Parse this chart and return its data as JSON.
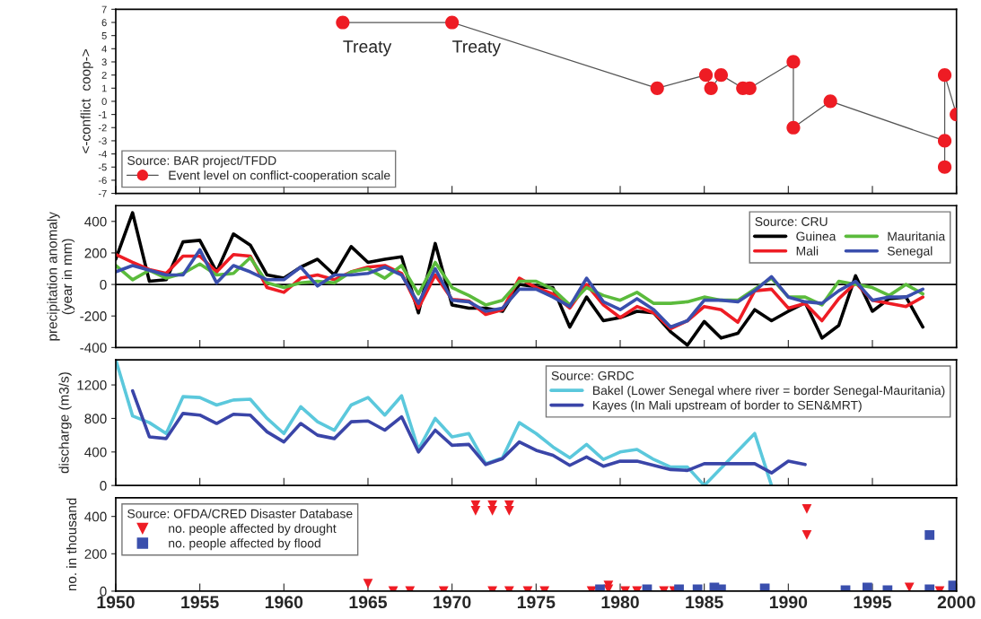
{
  "chart_data": [
    {
      "type": "line",
      "ylabel": "<-conflict  coop->",
      "xlim": [
        1950,
        2000
      ],
      "xticks": [
        1950,
        1955,
        1960,
        1965,
        1970,
        1975,
        1980,
        1985,
        1990,
        1995,
        2000
      ],
      "ylim": [
        -7,
        7
      ],
      "yticks": [
        -7,
        -6,
        -5,
        -4,
        -3,
        -2,
        -1,
        0,
        1,
        2,
        3,
        4,
        5,
        6,
        7
      ],
      "tick_labels": "y",
      "grid": false,
      "legend": "bottom left",
      "legend_title": "Source: BAR project/TFDD",
      "marker": "circle",
      "series": [
        {
          "name": "Event level on conflict-cooperation scale",
          "color": "#ee1c24",
          "x": [
            1963.5,
            1970,
            1982.2,
            1985.1,
            1985.4,
            1986,
            1987.3,
            1987.7,
            1990.3,
            1990.3,
            1992.5,
            1999.3,
            1999.3,
            1999.3,
            2000
          ],
          "values": [
            6,
            6,
            1,
            2,
            1,
            2,
            1,
            1,
            3,
            -2,
            0,
            -3,
            -5,
            2,
            -1
          ]
        }
      ],
      "annotations": [
        {
          "text": "Treaty",
          "x": 1963.5,
          "y": 6
        },
        {
          "text": "Treaty",
          "x": 1970,
          "y": 6
        }
      ]
    },
    {
      "type": "line",
      "ylabel": "precipitation anomaly\n(year in mm)",
      "xlim": [
        1950,
        2000
      ],
      "xticks": [
        1950,
        1955,
        1960,
        1965,
        1970,
        1975,
        1980,
        1985,
        1990,
        1995,
        2000
      ],
      "ylim": [
        -400,
        500
      ],
      "yticks": [
        -400,
        -200,
        0,
        200,
        400
      ],
      "tick_labels": "y",
      "grid": false,
      "legend": "top right",
      "legend_title": "Source: CRU",
      "x": [
        1950,
        1951,
        1952,
        1953,
        1954,
        1955,
        1956,
        1957,
        1958,
        1959,
        1960,
        1961,
        1962,
        1963,
        1964,
        1965,
        1966,
        1967,
        1968,
        1969,
        1970,
        1971,
        1972,
        1973,
        1974,
        1975,
        1976,
        1977,
        1978,
        1979,
        1980,
        1981,
        1982,
        1983,
        1984,
        1985,
        1986,
        1987,
        1988,
        1989,
        1990,
        1991,
        1992,
        1993,
        1994,
        1995,
        1996,
        1997,
        1998
      ],
      "ref_lines": [
        {
          "axis": "y",
          "value": 0,
          "color": "#000000"
        }
      ],
      "series": [
        {
          "name": "Guinea",
          "color": "#000000",
          "values": [
            160,
            455,
            20,
            30,
            270,
            280,
            80,
            320,
            250,
            60,
            40,
            110,
            160,
            60,
            240,
            140,
            160,
            175,
            -180,
            260,
            -130,
            -150,
            -150,
            -170,
            0,
            -15,
            -20,
            -270,
            -80,
            -230,
            -210,
            -170,
            -180,
            -300,
            -385,
            -235,
            -340,
            -310,
            -160,
            -230,
            -170,
            -115,
            -340,
            -260,
            55,
            -170,
            -90,
            -80,
            -270
          ]
        },
        {
          "name": "Mali",
          "color": "#ee1c24",
          "values": [
            190,
            140,
            95,
            70,
            180,
            180,
            80,
            190,
            180,
            -20,
            -50,
            40,
            60,
            30,
            80,
            110,
            120,
            70,
            -150,
            60,
            -95,
            -105,
            -190,
            -160,
            40,
            -20,
            -60,
            -150,
            0,
            -130,
            -210,
            -140,
            -180,
            -280,
            -230,
            -140,
            -160,
            -240,
            -40,
            -30,
            -150,
            -120,
            -230,
            -90,
            10,
            -100,
            -120,
            -140,
            -80
          ]
        },
        {
          "name": "Mauritania",
          "color": "#5bbb3c",
          "values": [
            120,
            30,
            90,
            40,
            70,
            130,
            60,
            70,
            170,
            10,
            -20,
            10,
            20,
            10,
            80,
            100,
            40,
            120,
            -60,
            140,
            -20,
            -70,
            -130,
            -100,
            20,
            20,
            -30,
            -130,
            -20,
            -70,
            -100,
            -50,
            -120,
            -120,
            -110,
            -80,
            -100,
            -100,
            -30,
            40,
            -80,
            -80,
            -130,
            20,
            0,
            -20,
            -70,
            0,
            -60
          ]
        },
        {
          "name": "Senegal",
          "color": "#3a4fad",
          "values": [
            80,
            120,
            90,
            60,
            60,
            220,
            10,
            120,
            80,
            30,
            30,
            110,
            -10,
            60,
            60,
            70,
            110,
            60,
            -120,
            100,
            -100,
            -110,
            -170,
            -150,
            -30,
            -30,
            -80,
            -140,
            40,
            -110,
            -160,
            -90,
            -160,
            -270,
            -230,
            -100,
            -100,
            -110,
            -40,
            50,
            -80,
            -110,
            -120,
            -40,
            20,
            -100,
            -80,
            -80,
            -30
          ]
        }
      ]
    },
    {
      "type": "line",
      "ylabel": "discharge (m3/s)",
      "xlim": [
        1950,
        2000
      ],
      "xticks": [
        1950,
        1955,
        1960,
        1965,
        1970,
        1975,
        1980,
        1985,
        1990,
        1995,
        2000
      ],
      "ylim": [
        0,
        1500
      ],
      "yticks": [
        0,
        400,
        800,
        1200
      ],
      "tick_labels": "y",
      "grid": false,
      "legend": "top right",
      "legend_title": "Source: GRDC",
      "series": [
        {
          "name": "Bakel (Lower Senegal where river = border Senegal-Mauritania)",
          "color": "#5bc8dc",
          "x": [
            1950,
            1951,
            1952,
            1953,
            1954,
            1955,
            1956,
            1957,
            1958,
            1959,
            1960,
            1961,
            1962,
            1963,
            1964,
            1965,
            1966,
            1967,
            1968,
            1969,
            1970,
            1971,
            1972,
            1973,
            1974,
            1975,
            1976,
            1977,
            1978,
            1979,
            1980,
            1981,
            1982,
            1983,
            1984,
            1985,
            1988,
            1989
          ],
          "values": [
            1500,
            830,
            750,
            620,
            1060,
            1050,
            960,
            1020,
            1030,
            800,
            620,
            940,
            760,
            660,
            960,
            1050,
            840,
            1070,
            430,
            800,
            580,
            620,
            260,
            330,
            750,
            620,
            460,
            330,
            490,
            310,
            400,
            430,
            310,
            220,
            220,
            0,
            620,
            0
          ]
        },
        {
          "name": "Kayes (In Mali upstream of border to SEN&MRT)",
          "color": "#3a45a8",
          "x": [
            1951,
            1952,
            1953,
            1954,
            1955,
            1956,
            1957,
            1958,
            1959,
            1960,
            1961,
            1962,
            1963,
            1964,
            1965,
            1966,
            1967,
            1968,
            1969,
            1970,
            1971,
            1972,
            1973,
            1974,
            1975,
            1976,
            1977,
            1978,
            1979,
            1980,
            1981,
            1982,
            1983,
            1984,
            1985,
            1986,
            1987,
            1988,
            1989,
            1990,
            1991
          ],
          "values": [
            1130,
            580,
            560,
            860,
            840,
            740,
            850,
            840,
            640,
            520,
            740,
            600,
            560,
            760,
            770,
            660,
            820,
            400,
            660,
            480,
            490,
            250,
            320,
            520,
            420,
            360,
            240,
            340,
            230,
            290,
            290,
            240,
            190,
            180,
            260,
            260,
            260,
            260,
            150,
            290,
            250
          ]
        }
      ]
    },
    {
      "type": "scatter",
      "ylabel": "no. in thousand",
      "xlim": [
        1950,
        2000
      ],
      "xticks": [
        1950,
        1955,
        1960,
        1965,
        1970,
        1975,
        1980,
        1985,
        1990,
        1995,
        2000
      ],
      "ylim": [
        0,
        500
      ],
      "yticks": [
        0,
        200,
        400
      ],
      "grid": false,
      "legend": "top left",
      "legend_title": "Source: OFDA/CRED Disaster Database",
      "series": [
        {
          "name": "no. people affected by drought",
          "color": "#ee1c24",
          "marker": "triangle",
          "x": [
            1965,
            1966.5,
            1967.5,
            1969.5,
            1971.4,
            1971.4,
            1972.4,
            1972.4,
            1972.4,
            1973.4,
            1973.4,
            1973.4,
            1974.5,
            1975.5,
            1978.3,
            1979.3,
            1979.3,
            1980.3,
            1981,
            1982.6,
            1983.2,
            1991.1,
            1991.1,
            1997.2,
            1999
          ],
          "values": [
            40,
            0,
            0,
            0,
            460,
            430,
            460,
            430,
            0,
            460,
            430,
            0,
            0,
            0,
            0,
            30,
            10,
            0,
            0,
            0,
            0,
            440,
            300,
            20,
            0
          ]
        },
        {
          "name": "no. people affected by flood",
          "color": "#3a4fad",
          "marker": "square",
          "x": [
            1978.8,
            1981.6,
            1983.5,
            1984.6,
            1985.6,
            1986,
            1988.6,
            1993.4,
            1994.7,
            1995.9,
            1998.4,
            1998.4,
            1999.8
          ],
          "values": [
            10,
            10,
            10,
            10,
            20,
            10,
            15,
            5,
            20,
            5,
            300,
            10,
            30
          ]
        }
      ]
    }
  ]
}
